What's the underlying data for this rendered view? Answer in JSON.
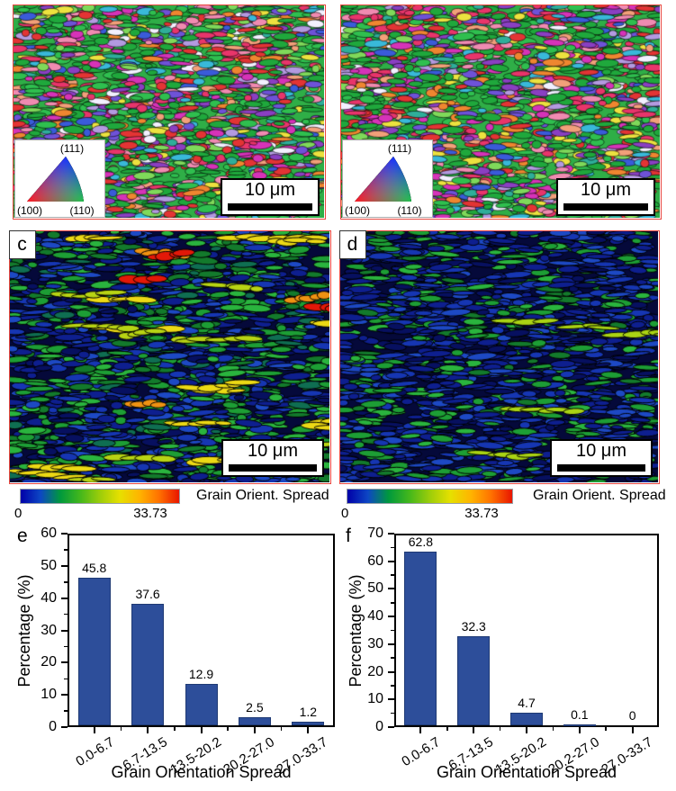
{
  "figure": {
    "scale_bar_label": "10 μm",
    "ipf_legend": {
      "v111": "(111)",
      "v100": "(100)",
      "v110": "(110)"
    },
    "colorbar": {
      "title": "Grain Orient. Spread",
      "min": "0",
      "max": "33.73"
    },
    "panel_labels": {
      "c": "c",
      "d": "d",
      "e": "e",
      "f": "f"
    }
  },
  "chart_data": [
    {
      "type": "bar",
      "panel": "e",
      "categories": [
        "0.0-6.7",
        "6.7-13.5",
        "13.5-20.2",
        "20.2-27.0",
        "27.0-33.7"
      ],
      "values": [
        45.8,
        37.6,
        12.9,
        2.5,
        1.2
      ],
      "value_labels": [
        "45.8",
        "37.6",
        "12.9",
        "2.5",
        "1.2"
      ],
      "title": "",
      "xlabel": "Grain Orientation Spread",
      "ylabel": "Percentage (%)",
      "ylim": [
        0,
        60
      ],
      "yticks": [
        0,
        10,
        20,
        30,
        40,
        50,
        60
      ],
      "grid": false,
      "legend": null
    },
    {
      "type": "bar",
      "panel": "f",
      "categories": [
        "0.0-6.7",
        "6.7-13.5",
        "13.5-20.2",
        "20.2-27.0",
        "27.0-33.7"
      ],
      "values": [
        62.8,
        32.3,
        4.7,
        0.1,
        0
      ],
      "value_labels": [
        "62.8",
        "32.3",
        "4.7",
        "0.1",
        "0"
      ],
      "title": "",
      "xlabel": "Grain Orientation Spread",
      "ylabel": "Percentage (%)",
      "ylim": [
        0,
        70
      ],
      "yticks": [
        0,
        10,
        20,
        30,
        40,
        50,
        60,
        70
      ],
      "grid": false,
      "legend": null
    }
  ],
  "colors": {
    "bar_fill": "#2d4e9a",
    "bar_edge": "#1f3a74",
    "panel_border": "#e8473f",
    "axis": "#000000",
    "ipf_red": "#ff0000",
    "ipf_green": "#00c000",
    "ipf_blue": "#0000ff",
    "colorbar_gradient": [
      "#0000a8",
      "#0d47c4",
      "#00993d",
      "#43b71c",
      "#9ccd0a",
      "#e6e000",
      "#ffb400",
      "#ff7000",
      "#e81500"
    ]
  }
}
